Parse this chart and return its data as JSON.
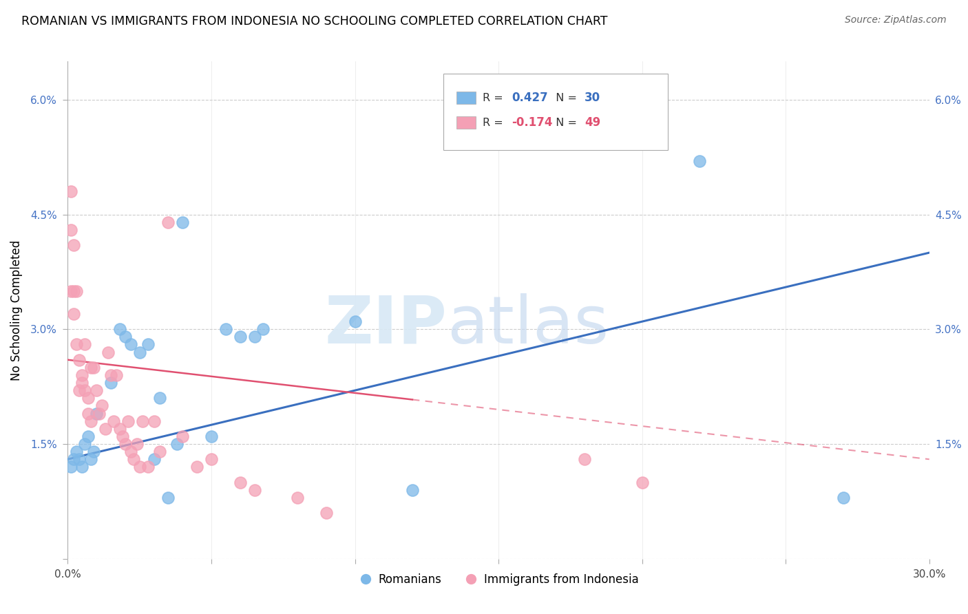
{
  "title": "ROMANIAN VS IMMIGRANTS FROM INDONESIA NO SCHOOLING COMPLETED CORRELATION CHART",
  "source": "Source: ZipAtlas.com",
  "ylabel": "No Schooling Completed",
  "xlim": [
    0.0,
    0.3
  ],
  "ylim": [
    0.0,
    0.065
  ],
  "xticks": [
    0.0,
    0.05,
    0.1,
    0.15,
    0.2,
    0.25,
    0.3
  ],
  "yticks": [
    0.0,
    0.015,
    0.03,
    0.045,
    0.06
  ],
  "romanian_R": 0.427,
  "romanian_N": 30,
  "indonesia_R": -0.174,
  "indonesia_N": 49,
  "romanian_color": "#7db8e8",
  "indonesia_color": "#f4a0b5",
  "romanian_line_color": "#3a6fbf",
  "indonesia_line_color": "#e05070",
  "romanian_x": [
    0.001,
    0.002,
    0.003,
    0.004,
    0.005,
    0.006,
    0.007,
    0.008,
    0.009,
    0.01,
    0.015,
    0.018,
    0.02,
    0.022,
    0.025,
    0.028,
    0.03,
    0.032,
    0.035,
    0.038,
    0.04,
    0.05,
    0.055,
    0.06,
    0.065,
    0.068,
    0.1,
    0.12,
    0.22,
    0.27
  ],
  "romanian_y": [
    0.012,
    0.013,
    0.014,
    0.013,
    0.012,
    0.015,
    0.016,
    0.013,
    0.014,
    0.019,
    0.023,
    0.03,
    0.029,
    0.028,
    0.027,
    0.028,
    0.013,
    0.021,
    0.008,
    0.015,
    0.044,
    0.016,
    0.03,
    0.029,
    0.029,
    0.03,
    0.031,
    0.009,
    0.052,
    0.008
  ],
  "indonesia_x": [
    0.001,
    0.001,
    0.001,
    0.002,
    0.002,
    0.002,
    0.003,
    0.003,
    0.004,
    0.004,
    0.005,
    0.005,
    0.006,
    0.006,
    0.007,
    0.007,
    0.008,
    0.008,
    0.009,
    0.01,
    0.011,
    0.012,
    0.013,
    0.014,
    0.015,
    0.016,
    0.017,
    0.018,
    0.019,
    0.02,
    0.021,
    0.022,
    0.023,
    0.024,
    0.025,
    0.026,
    0.028,
    0.03,
    0.032,
    0.035,
    0.04,
    0.045,
    0.05,
    0.06,
    0.065,
    0.08,
    0.09,
    0.18,
    0.2
  ],
  "indonesia_y": [
    0.048,
    0.035,
    0.043,
    0.041,
    0.035,
    0.032,
    0.028,
    0.035,
    0.026,
    0.022,
    0.024,
    0.023,
    0.028,
    0.022,
    0.019,
    0.021,
    0.018,
    0.025,
    0.025,
    0.022,
    0.019,
    0.02,
    0.017,
    0.027,
    0.024,
    0.018,
    0.024,
    0.017,
    0.016,
    0.015,
    0.018,
    0.014,
    0.013,
    0.015,
    0.012,
    0.018,
    0.012,
    0.018,
    0.014,
    0.044,
    0.016,
    0.012,
    0.013,
    0.01,
    0.009,
    0.008,
    0.006,
    0.013,
    0.01
  ],
  "rom_line_x0": 0.0,
  "rom_line_y0": 0.013,
  "rom_line_x1": 0.3,
  "rom_line_y1": 0.04,
  "ind_line_x0": 0.0,
  "ind_line_y0": 0.026,
  "ind_line_x1": 0.3,
  "ind_line_y1": 0.013
}
